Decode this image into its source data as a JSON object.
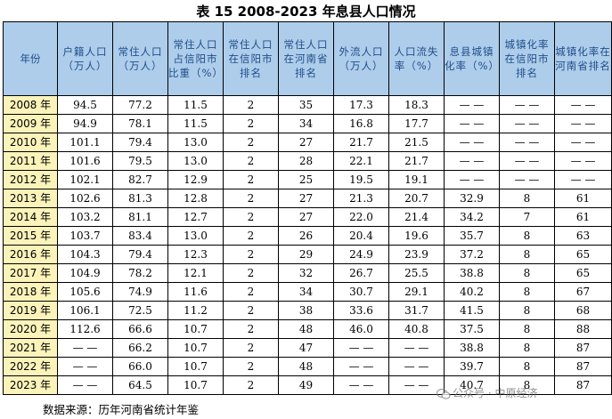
{
  "title": "表 15 2008-2023 年息县人口情况",
  "headers": [
    "年份",
    "户籍人口（万人）",
    "常住人口（万人）",
    "常住人口占信阳市比重（%）",
    "常住人口在信阳市排名",
    "常住人口在河南省排名",
    "外流人口（万人）",
    "人口流失率（%）",
    "息县城镇化率（%）",
    "城镇化率在信阳市排名",
    "城镇化率在河南省排名"
  ],
  "rows": [
    [
      "2008 年",
      "94.5",
      "77.2",
      "11.5",
      "2",
      "35",
      "17.3",
      "18.3",
      "— —",
      "— —",
      "— —"
    ],
    [
      "2009 年",
      "94.9",
      "78.1",
      "11.5",
      "2",
      "34",
      "16.8",
      "17.7",
      "— —",
      "— —",
      "— —"
    ],
    [
      "2010 年",
      "101.1",
      "79.4",
      "13.0",
      "2",
      "27",
      "21.7",
      "21.5",
      "— —",
      "— —",
      "— —"
    ],
    [
      "2011 年",
      "101.6",
      "79.5",
      "13.0",
      "2",
      "28",
      "22.1",
      "21.7",
      "— —",
      "— —",
      "— —"
    ],
    [
      "2012 年",
      "102.1",
      "82.7",
      "12.9",
      "2",
      "25",
      "19.5",
      "19.1",
      "— —",
      "— —",
      "— —"
    ],
    [
      "2013 年",
      "102.6",
      "81.3",
      "12.8",
      "2",
      "27",
      "21.3",
      "20.7",
      "32.9",
      "8",
      "61"
    ],
    [
      "2014 年",
      "103.2",
      "81.1",
      "12.7",
      "2",
      "27",
      "22.0",
      "21.4",
      "34.2",
      "7",
      "61"
    ],
    [
      "2015 年",
      "103.7",
      "83.4",
      "13.0",
      "2",
      "26",
      "20.4",
      "19.6",
      "35.7",
      "8",
      "63"
    ],
    [
      "2016 年",
      "104.3",
      "79.4",
      "12.3",
      "2",
      "29",
      "24.9",
      "23.9",
      "37.2",
      "8",
      "65"
    ],
    [
      "2017 年",
      "104.9",
      "78.2",
      "12.1",
      "2",
      "32",
      "26.7",
      "25.5",
      "38.8",
      "8",
      "65"
    ],
    [
      "2018 年",
      "105.6",
      "74.9",
      "11.6",
      "2",
      "34",
      "30.7",
      "29.1",
      "40.2",
      "8",
      "67"
    ],
    [
      "2019 年",
      "106.1",
      "72.5",
      "11.2",
      "2",
      "38",
      "33.6",
      "31.7",
      "41.5",
      "8",
      "68"
    ],
    [
      "2020 年",
      "112.6",
      "66.6",
      "10.7",
      "2",
      "48",
      "46.0",
      "40.8",
      "37.5",
      "8",
      "88"
    ],
    [
      "2021 年",
      "— —",
      "66.2",
      "10.7",
      "2",
      "47",
      "— —",
      "— —",
      "38.8",
      "8",
      "87"
    ],
    [
      "2022 年",
      "— —",
      "66.0",
      "10.7",
      "2",
      "48",
      "— —",
      "— —",
      "39.7",
      "8",
      "87"
    ],
    [
      "2023 年",
      "— —",
      "64.5",
      "10.7",
      "2",
      "49",
      "— —",
      "— —",
      "40.7",
      "8",
      "87"
    ]
  ],
  "source": "数据来源：历年河南省统计年鉴",
  "watermark": "公众号 · 中原经济",
  "colors": {
    "header_bg": "#aecdeb",
    "header_text": "#1f4e8a",
    "year_bg": "#fbf3ba"
  }
}
